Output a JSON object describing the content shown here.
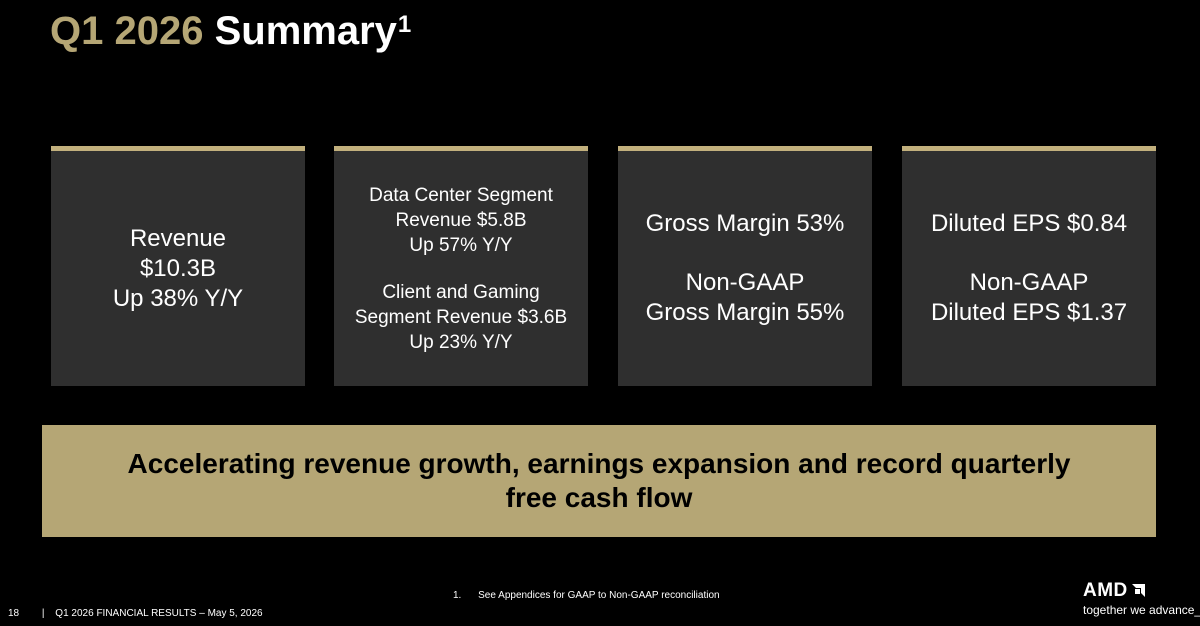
{
  "header": {
    "title_period": "Q1 2026",
    "title_text": "Summary",
    "title_superscript": "1"
  },
  "cards": {
    "revenue": {
      "line1": "Revenue",
      "line2": "$10.3B",
      "line3": "Up 38% Y/Y"
    },
    "segments": {
      "dc_line1": "Data Center Segment",
      "dc_line2": "Revenue $5.8B",
      "dc_line3": "Up 57% Y/Y",
      "cg_line1": "Client and Gaming",
      "cg_line2": "Segment Revenue $3.6B",
      "cg_line3": "Up 23% Y/Y"
    },
    "margin": {
      "line1": "Gross Margin 53%",
      "line2": "Non-GAAP",
      "line3": "Gross Margin 55%"
    },
    "eps": {
      "line1": "Diluted EPS $0.84",
      "line2": "Non-GAAP",
      "line3": "Diluted EPS $1.37"
    }
  },
  "banner": {
    "line1": "Accelerating revenue growth, earnings expansion and record quarterly",
    "line2": "free cash flow"
  },
  "footnote": {
    "number": "1.",
    "text": "See Appendices for GAAP to Non-GAAP reconciliation"
  },
  "footer": {
    "page_number": "18",
    "separator": "|",
    "text": "Q1 2026 FINANCIAL RESULTS – May 5, 2026"
  },
  "logo": {
    "wordmark": "AMD",
    "tagline": "together we advance_",
    "icon": "amd-arrow-icon"
  },
  "colors": {
    "background": "#000000",
    "gold": "#b5a675",
    "card_bg": "#2f2f2f",
    "card_border": "#c2b07d",
    "text": "#ffffff"
  }
}
